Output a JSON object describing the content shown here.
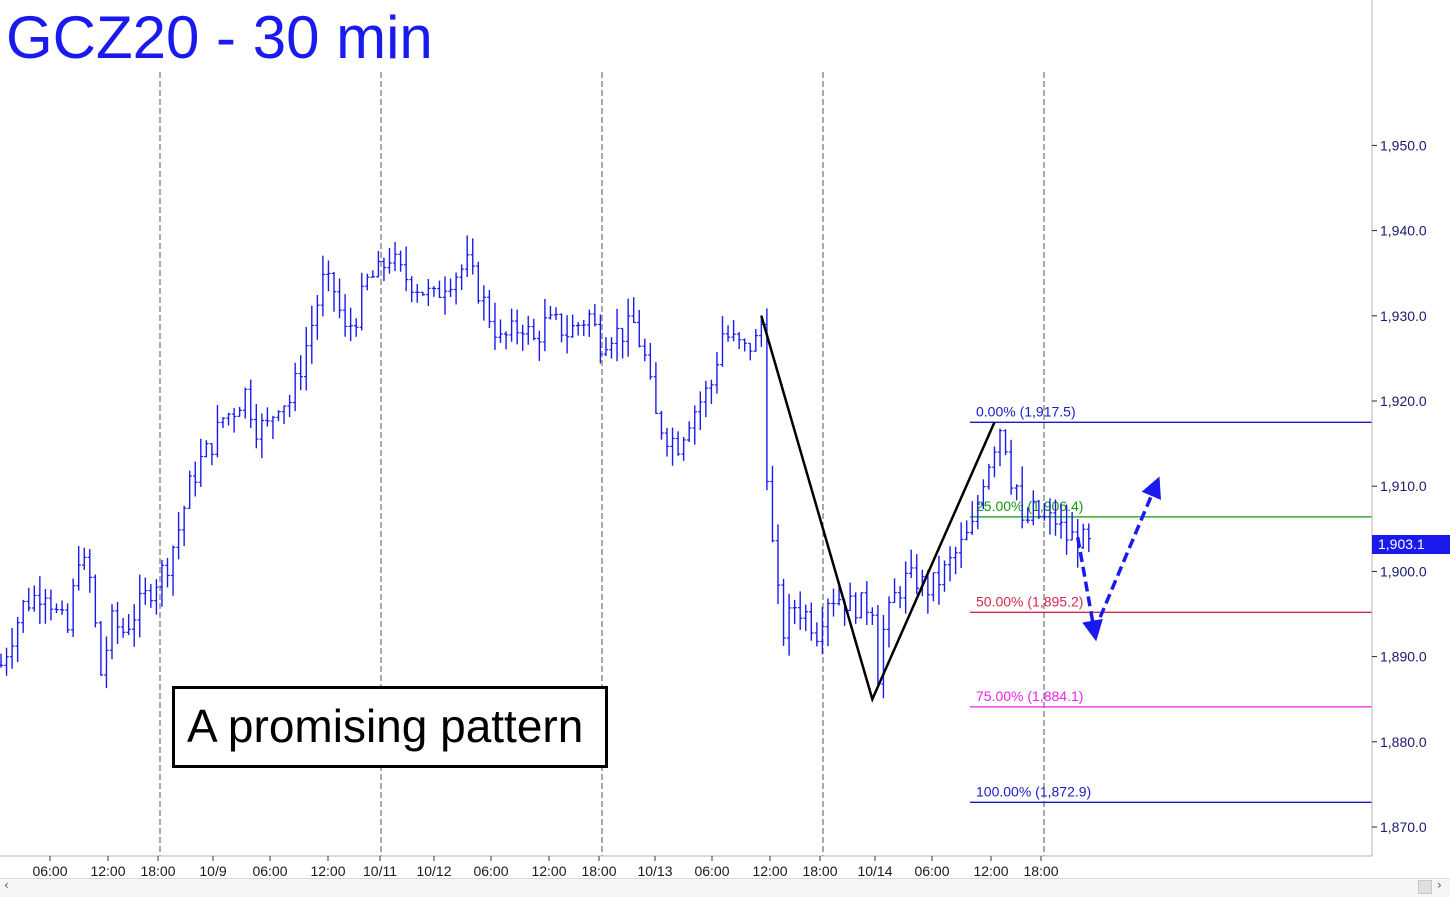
{
  "chart_data": {
    "type": "ohlc",
    "title": "GCZ20 - 30 min",
    "x_tick_labels": [
      "06:00",
      "12:00",
      "18:00",
      "10/9",
      "06:00",
      "12:00",
      "10/11",
      "10/12",
      "06:00",
      "12:00",
      "18:00",
      "10/13",
      "06:00",
      "12:00",
      "18:00",
      "10/14",
      "06:00",
      "12:00",
      "18:00"
    ],
    "y_tick_labels": [
      "1,950.0",
      "1,940.0",
      "1,930.0",
      "1,920.0",
      "1,910.0",
      "1,900.0",
      "1,890.0",
      "1,880.0",
      "1,870.0"
    ],
    "y_ticks": [
      1950,
      1940,
      1930,
      1920,
      1910,
      1900,
      1890,
      1880,
      1870
    ],
    "ylim": [
      1863,
      1963
    ],
    "last_price": 1903.1,
    "last_price_label": "1,903.1",
    "price_path": [
      [
        0,
        1889
      ],
      [
        4,
        1896
      ],
      [
        8,
        1898
      ],
      [
        10,
        1895
      ],
      [
        12,
        1893
      ],
      [
        14,
        1902
      ],
      [
        16,
        1899
      ],
      [
        18,
        1888
      ],
      [
        20,
        1894
      ],
      [
        22,
        1893
      ],
      [
        24,
        1895
      ],
      [
        26,
        1897
      ],
      [
        28,
        1899
      ],
      [
        30,
        1901
      ],
      [
        32,
        1905
      ],
      [
        34,
        1910
      ],
      [
        36,
        1913
      ],
      [
        38,
        1915
      ],
      [
        40,
        1918
      ],
      [
        42,
        1919
      ],
      [
        44,
        1921
      ],
      [
        46,
        1917
      ],
      [
        48,
        1917
      ],
      [
        50,
        1920
      ],
      [
        52,
        1920
      ],
      [
        54,
        1924
      ],
      [
        56,
        1929
      ],
      [
        58,
        1934
      ],
      [
        60,
        1933
      ],
      [
        62,
        1928
      ],
      [
        64,
        1930
      ],
      [
        66,
        1934
      ],
      [
        68,
        1935
      ],
      [
        70,
        1937
      ],
      [
        72,
        1935
      ],
      [
        74,
        1934
      ],
      [
        76,
        1933
      ],
      [
        78,
        1932
      ],
      [
        80,
        1934
      ],
      [
        82,
        1935
      ],
      [
        84,
        1936
      ],
      [
        86,
        1933
      ],
      [
        88,
        1930
      ],
      [
        90,
        1927
      ],
      [
        92,
        1928
      ],
      [
        94,
        1929
      ],
      [
        96,
        1927
      ],
      [
        98,
        1929
      ],
      [
        100,
        1929
      ],
      [
        102,
        1928
      ],
      [
        104,
        1929
      ],
      [
        106,
        1930
      ],
      [
        108,
        1927
      ],
      [
        110,
        1928
      ],
      [
        112,
        1928
      ],
      [
        114,
        1929
      ],
      [
        116,
        1925
      ],
      [
        118,
        1918
      ],
      [
        120,
        1916
      ],
      [
        122,
        1915
      ],
      [
        124,
        1918
      ],
      [
        126,
        1920
      ],
      [
        128,
        1922
      ],
      [
        130,
        1928
      ],
      [
        132,
        1927
      ],
      [
        134,
        1926
      ],
      [
        136,
        1927
      ],
      [
        137,
        1929
      ],
      [
        138,
        1912
      ],
      [
        139,
        1903
      ],
      [
        140,
        1897
      ],
      [
        141,
        1893
      ],
      [
        143,
        1896
      ],
      [
        145,
        1895
      ],
      [
        147,
        1893
      ],
      [
        149,
        1897
      ],
      [
        151,
        1897
      ],
      [
        153,
        1896
      ],
      [
        155,
        1896
      ],
      [
        157,
        1896
      ],
      [
        158,
        1888
      ],
      [
        159,
        1893
      ],
      [
        161,
        1897
      ],
      [
        163,
        1899
      ],
      [
        165,
        1899
      ],
      [
        167,
        1898
      ],
      [
        169,
        1899
      ],
      [
        171,
        1901
      ],
      [
        173,
        1903
      ],
      [
        175,
        1905
      ],
      [
        177,
        1911
      ],
      [
        179,
        1915
      ],
      [
        180,
        1917
      ],
      [
        181,
        1915
      ],
      [
        182,
        1911
      ],
      [
        183,
        1910
      ],
      [
        184,
        1905
      ],
      [
        186,
        1907
      ],
      [
        188,
        1906
      ],
      [
        190,
        1906
      ],
      [
        192,
        1904
      ],
      [
        194,
        1904
      ],
      [
        196,
        1903
      ]
    ],
    "price_path_units": "bar index (30-minute bars), price",
    "fibonacci_levels": [
      {
        "label": "0.00% (1,917.5)",
        "value": 1917.5,
        "color": "#1a1acc"
      },
      {
        "label": "25.00% (1,906.4)",
        "value": 1906.4,
        "color": "#119911"
      },
      {
        "label": "50.00% (1,895.2)",
        "value": 1895.2,
        "color": "#d42a4a"
      },
      {
        "label": "75.00% (1,884.1)",
        "value": 1884.1,
        "color": "#ee22ee"
      },
      {
        "label": "100.00% (1,872.9)",
        "value": 1872.9,
        "color": "#1a1acc"
      }
    ],
    "pattern_line": [
      [
        137,
        1930
      ],
      [
        157,
        1885
      ],
      [
        179,
        1917.5
      ]
    ],
    "projection_arrows": [
      [
        [
          194,
          1904
        ],
        [
          197,
          1893
        ]
      ],
      [
        [
          197,
          1893
        ],
        [
          208,
          1910
        ]
      ]
    ],
    "annotation": "A promising pattern",
    "grid": "vertical dashed lines at session boundaries",
    "colors": {
      "bars": "#1a1aee",
      "pattern": "#000000",
      "arrows": "#1a1aee",
      "title": "#1a1aee",
      "price_box": "#1a1aee"
    }
  }
}
